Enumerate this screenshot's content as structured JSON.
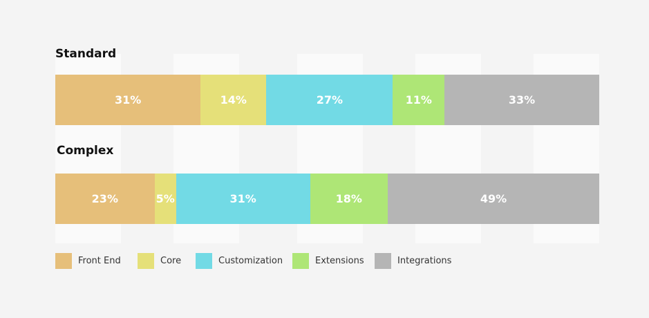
{
  "chart_data": {
    "type": "bar",
    "orientation": "horizontal-stacked",
    "series_names": [
      "Front End",
      "Core",
      "Customization",
      "Extensions",
      "Integrations"
    ],
    "colors": [
      "#e6bf7a",
      "#e5e079",
      "#72dae5",
      "#aee676",
      "#b5b5b5"
    ],
    "groups": [
      {
        "title": "Standard",
        "values": [
          31,
          14,
          27,
          11,
          33
        ],
        "labels": [
          "31%",
          "14%",
          "27%",
          "11%",
          "33%"
        ]
      },
      {
        "title": "Complex",
        "values": [
          23,
          5,
          31,
          18,
          49
        ],
        "labels": [
          "23%",
          "5%",
          "31%",
          "18%",
          "49%"
        ]
      }
    ],
    "legend": [
      {
        "label": "Front End",
        "color": "#e6bf7a"
      },
      {
        "label": "Core",
        "color": "#e5e079"
      },
      {
        "label": "Customization",
        "color": "#72dae5"
      },
      {
        "label": "Extensions",
        "color": "#aee676"
      },
      {
        "label": "Integrations",
        "color": "#b5b5b5"
      }
    ],
    "legend_position": "bottom-left"
  }
}
